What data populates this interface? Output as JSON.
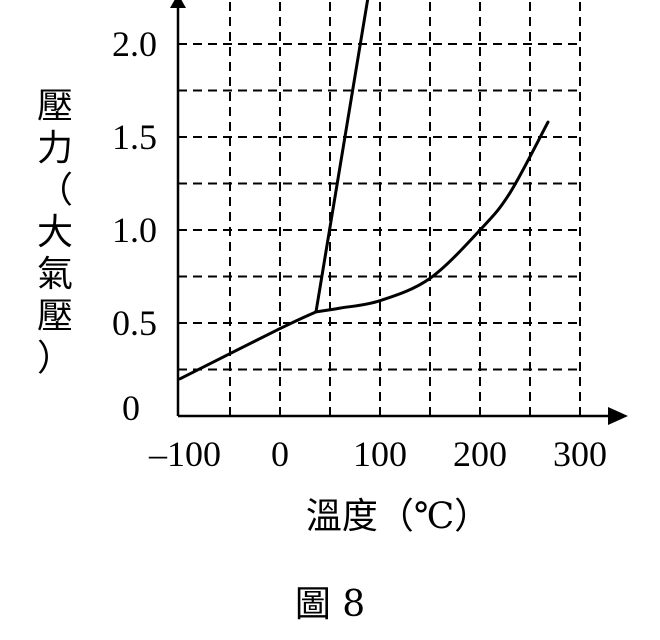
{
  "chart_data": {
    "type": "line",
    "title": "",
    "caption": "圖 8",
    "xlabel": "溫度（℃）",
    "ylabel": "壓力（大氣壓）",
    "xlim": [
      -100,
      320
    ],
    "ylim": [
      0,
      2.2
    ],
    "x_ticks": [
      {
        "value": -100,
        "label": "–100"
      },
      {
        "value": 0,
        "label": "0"
      },
      {
        "value": 100,
        "label": "100"
      },
      {
        "value": 200,
        "label": "200"
      },
      {
        "value": 300,
        "label": "300"
      }
    ],
    "y_ticks": [
      {
        "value": 0,
        "label": "0"
      },
      {
        "value": 0.5,
        "label": "0.5"
      },
      {
        "value": 1.0,
        "label": "1.0"
      },
      {
        "value": 1.5,
        "label": "1.5"
      },
      {
        "value": 2.0,
        "label": "2.0"
      }
    ],
    "grid": {
      "on": true,
      "style": "dashed",
      "x_lines": [
        -50,
        0,
        50,
        100,
        150,
        200,
        250,
        300
      ],
      "y_lines": [
        0.25,
        0.5,
        0.75,
        1.0,
        1.25,
        1.5,
        1.75,
        2.0
      ]
    },
    "series": [
      {
        "points": [
          [
            -100,
            0.2
          ],
          [
            0,
            0.47
          ],
          [
            36,
            0.56
          ]
        ]
      },
      {
        "points": [
          [
            36,
            0.56
          ],
          [
            88,
            2.25
          ]
        ]
      },
      {
        "points": [
          [
            36,
            0.56
          ],
          [
            60,
            0.58
          ],
          [
            100,
            0.62
          ],
          [
            150,
            0.74
          ],
          [
            200,
            1.0
          ],
          [
            230,
            1.2
          ],
          [
            268,
            1.58
          ]
        ]
      }
    ]
  }
}
